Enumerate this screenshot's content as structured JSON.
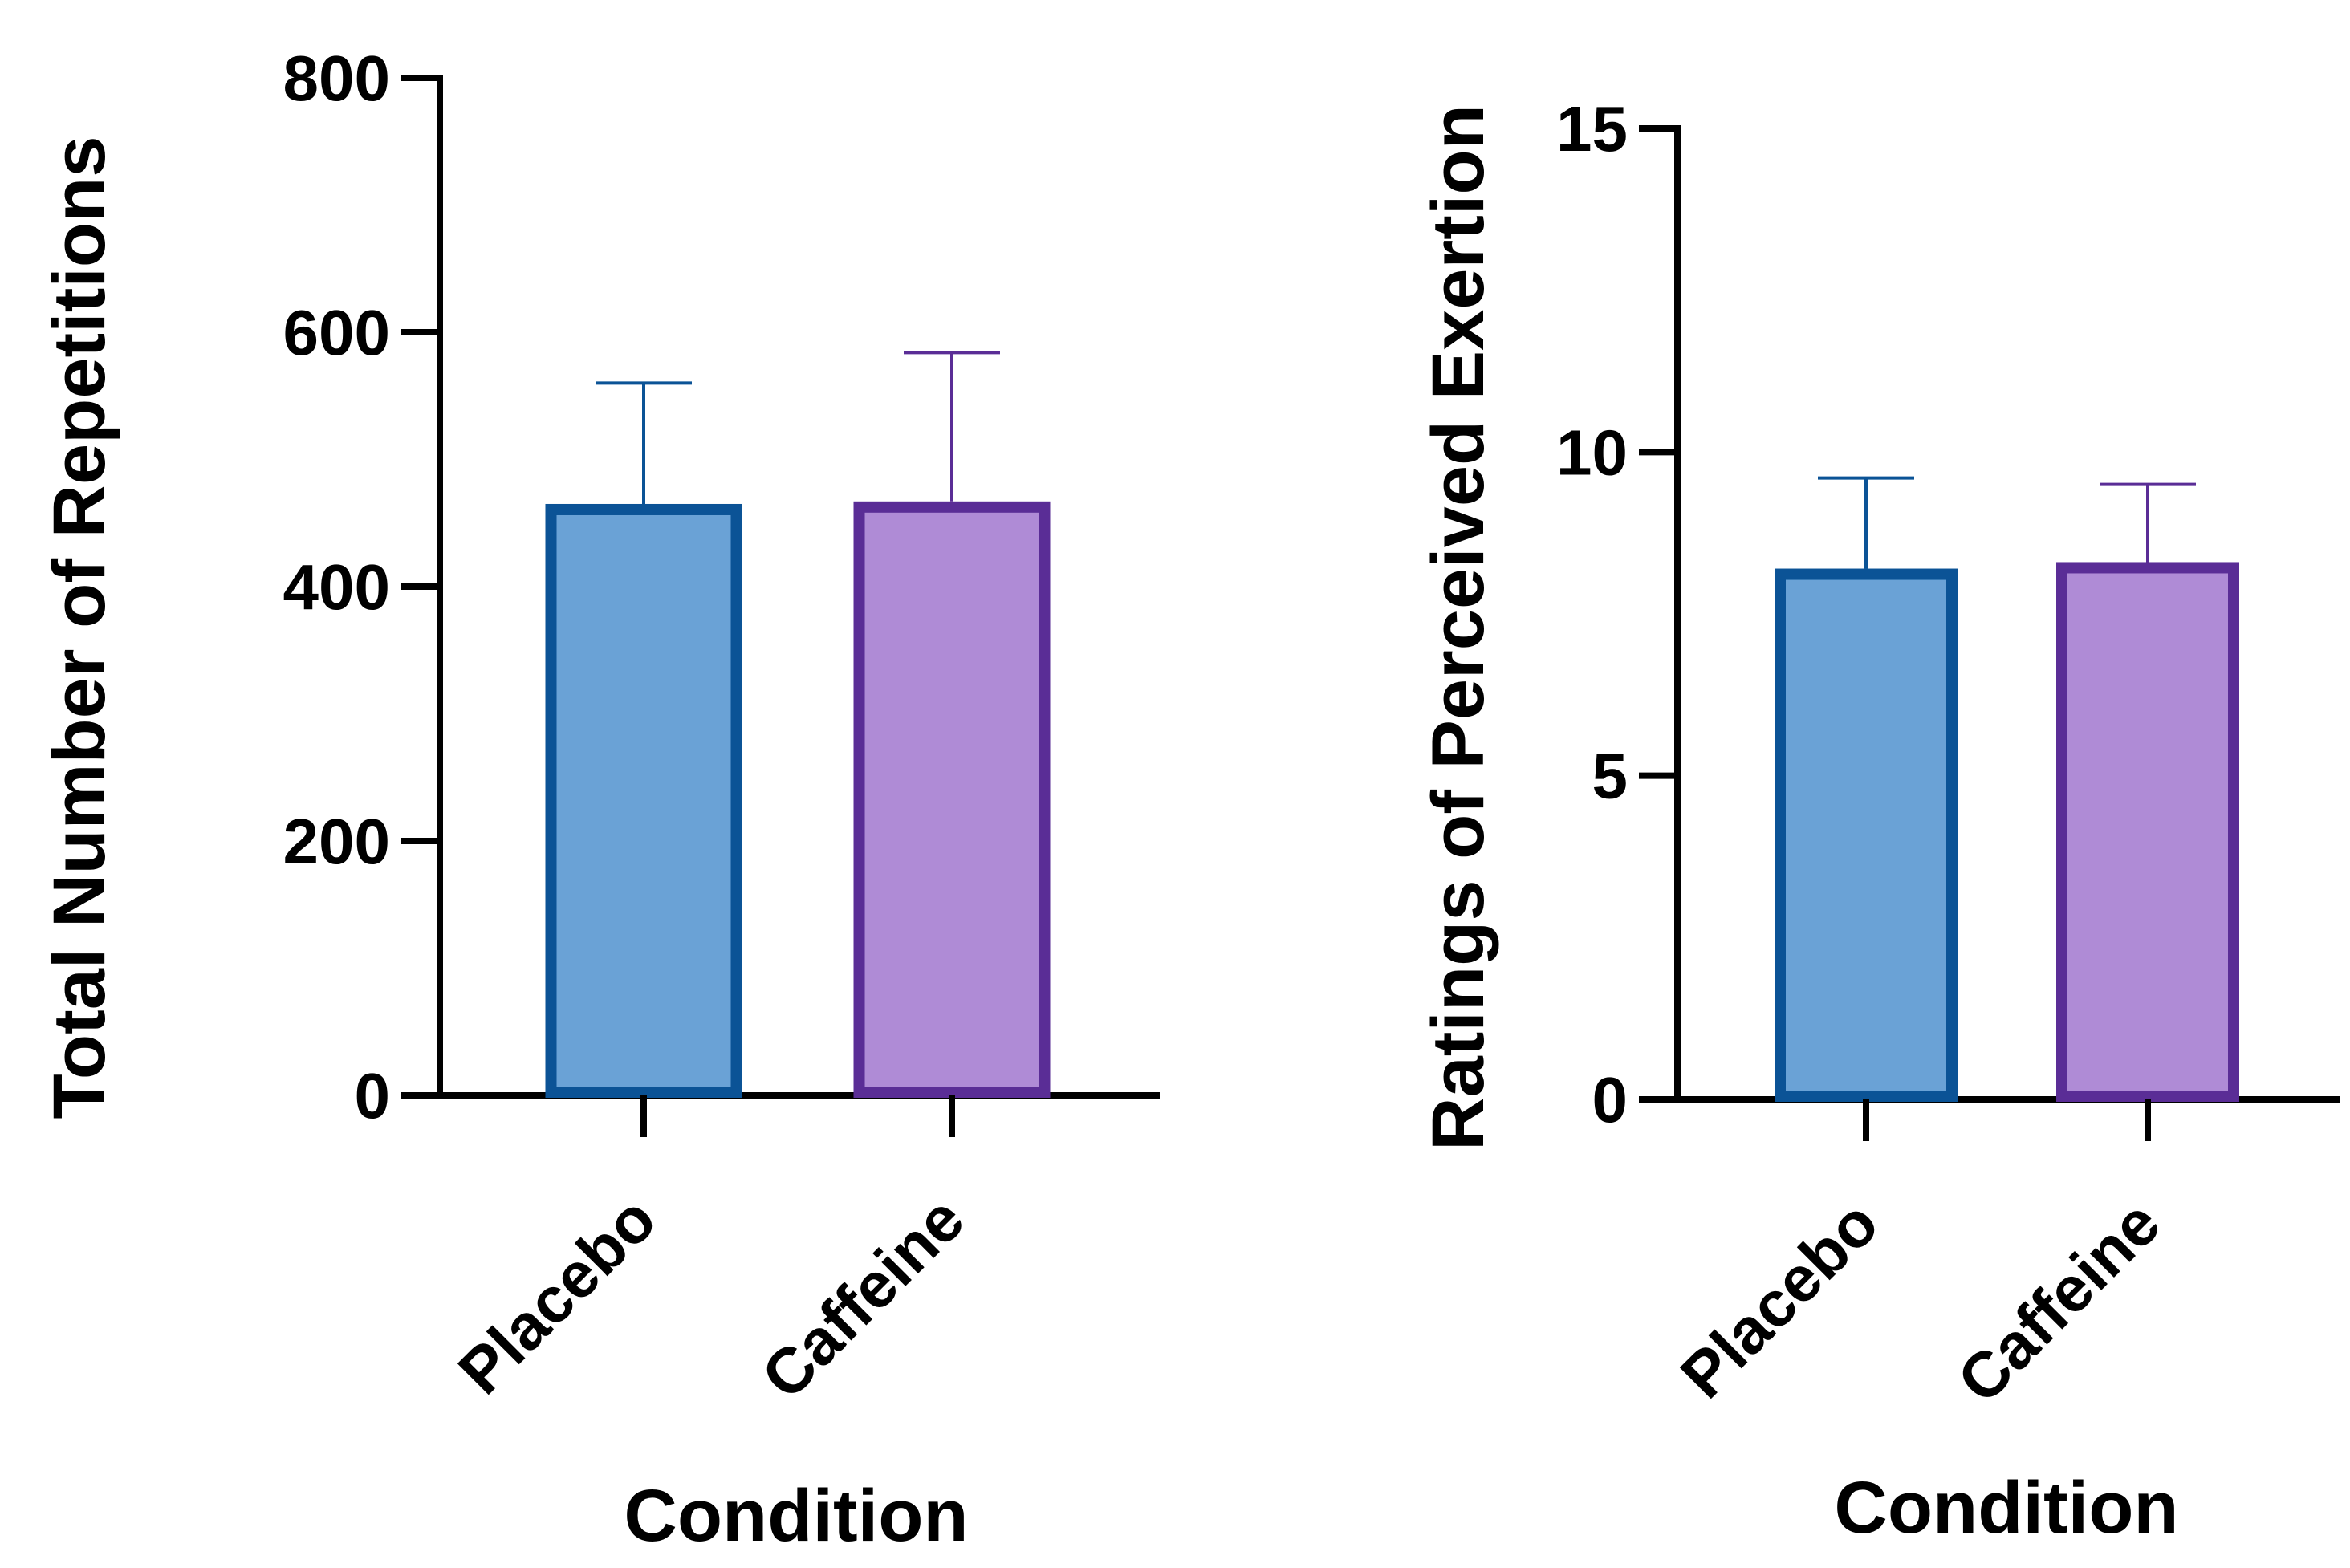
{
  "chart_data": [
    {
      "type": "bar",
      "categories": [
        "Placebo",
        "Caffeine"
      ],
      "values": [
        465,
        467
      ],
      "errors": [
        95,
        117
      ],
      "ylim": [
        0,
        800
      ],
      "yticks": [
        "0",
        "200",
        "400",
        "600",
        "800"
      ],
      "xlabel": "Condition",
      "ylabel": "Total Number of Repetitions",
      "grid": false,
      "error_bars": "upper",
      "colors": {
        "fill": [
          "#6aa2d6",
          "#af8bd6"
        ],
        "stroke": [
          "#0b5396",
          "#5a2d96"
        ]
      }
    },
    {
      "type": "bar",
      "categories": [
        "Placebo",
        "Caffeine"
      ],
      "values": [
        8.2,
        8.3
      ],
      "errors": [
        1.4,
        1.2
      ],
      "ylim": [
        0,
        15
      ],
      "yticks": [
        "0",
        "5",
        "10",
        "15"
      ],
      "xlabel": "Condition",
      "ylabel": "Ratings of Perceived Exertion",
      "grid": false,
      "error_bars": "upper",
      "colors": {
        "fill": [
          "#6aa2d6",
          "#af8bd6"
        ],
        "stroke": [
          "#0b5396",
          "#5a2d96"
        ]
      }
    }
  ]
}
